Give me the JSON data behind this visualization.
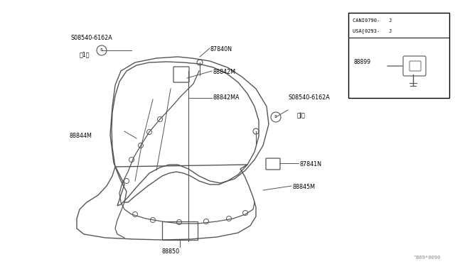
{
  "bg_color": "#ffffff",
  "line_color": "#555555",
  "text_color": "#000000",
  "watermark": "^869*0090",
  "inset_label1": "CANI0790-   J",
  "inset_label2": "USA[0293-   J",
  "inset_part": "88899",
  "figsize": [
    6.4,
    3.72
  ],
  "dpi": 100
}
